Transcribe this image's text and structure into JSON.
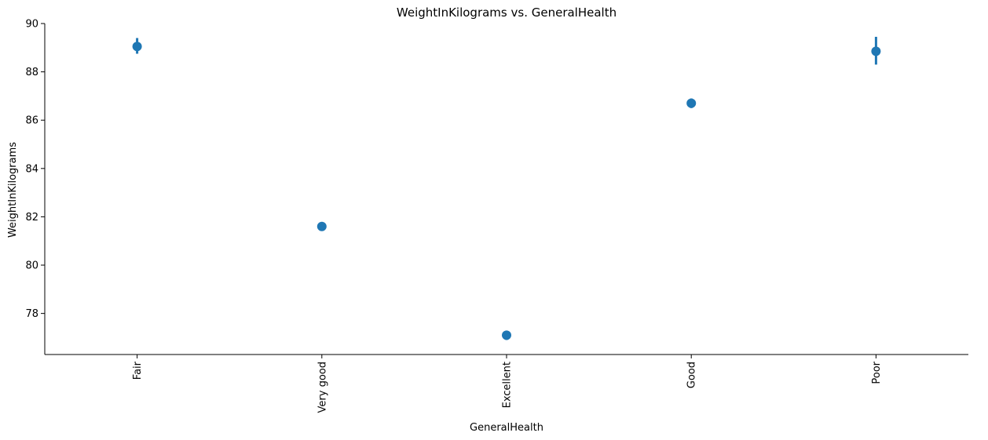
{
  "chart_data": {
    "type": "scatter",
    "title": "WeightInKilograms vs. GeneralHealth",
    "xlabel": "GeneralHealth",
    "ylabel": "WeightInKilograms",
    "categories": [
      "Fair",
      "Very good",
      "Excellent",
      "Good",
      "Poor"
    ],
    "values": [
      89.05,
      81.6,
      77.1,
      86.7,
      88.85
    ],
    "ci_low": [
      88.75,
      81.45,
      76.9,
      86.5,
      88.3
    ],
    "ci_high": [
      89.4,
      81.75,
      77.25,
      86.9,
      89.45
    ],
    "ylim": [
      76.3,
      90.0
    ],
    "yticks": [
      78,
      80,
      82,
      84,
      86,
      88,
      90
    ],
    "grid": false,
    "legend": "none",
    "marker_color": "#1f77b4"
  }
}
